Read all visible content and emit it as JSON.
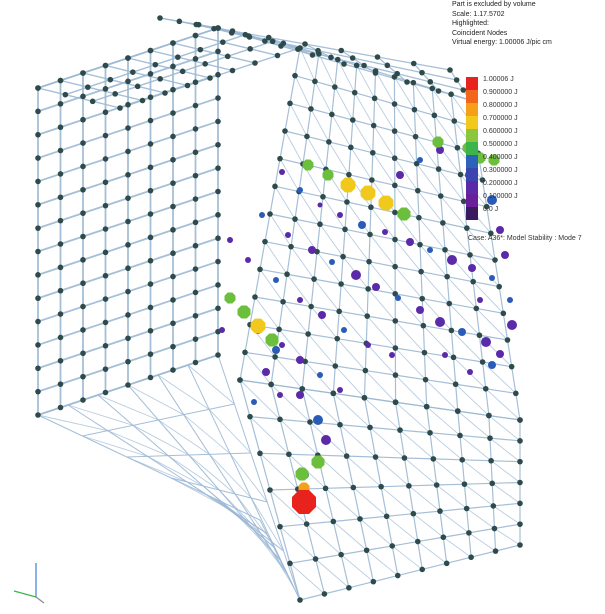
{
  "legend": {
    "lines": [
      "Part is excluded by volume",
      "Scale: 1.17.5702",
      "Highlighted:",
      "Coincident Nodes",
      "Virtual energy: 1.00006 J/pic cm"
    ],
    "scale": [
      {
        "label": "1.00006 J",
        "color": "#e8231e"
      },
      {
        "label": "0.900000 J",
        "color": "#f2661c"
      },
      {
        "label": "0.800000 J",
        "color": "#f6a019"
      },
      {
        "label": "0.700000 J",
        "color": "#f1c91c"
      },
      {
        "label": "0.600000 J",
        "color": "#8cc63f"
      },
      {
        "label": "0.500000 J",
        "color": "#3cb44b"
      },
      {
        "label": "0.400000 J",
        "color": "#2a63b8"
      },
      {
        "label": "0.300000 J",
        "color": "#3c44b0"
      },
      {
        "label": "0.200000 J",
        "color": "#5a2aa8"
      },
      {
        "label": "0.100000 J",
        "color": "#6a1f9a"
      },
      {
        "label": "0.0 J",
        "color": "#3a1a5e"
      }
    ],
    "footer": "Case: A36*: Model Stability : Mode 7"
  },
  "colors": {
    "mesh": "#9bb8d4",
    "node": "#2e4a4a",
    "red": "#e8231e",
    "orange": "#f6a019",
    "yellow": "#f1c91c",
    "green": "#6cbf3c",
    "blue": "#2a5bb8",
    "purple": "#5a2aa8"
  },
  "triad": {
    "axis_colors": [
      "#3c7dd8",
      "#3cb44b",
      "#8a8a8a"
    ]
  }
}
